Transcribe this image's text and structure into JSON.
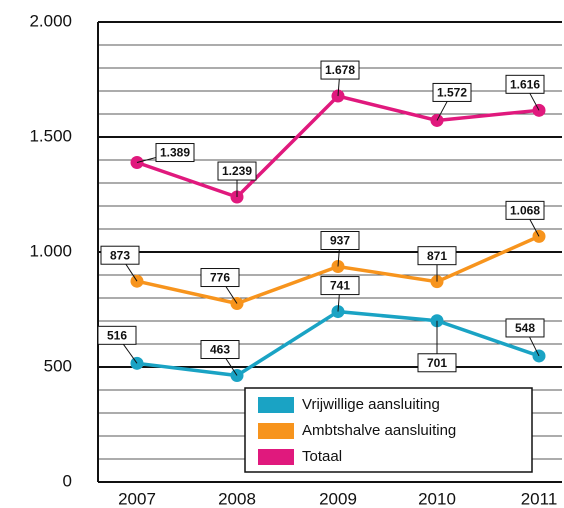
{
  "chart_data": {
    "type": "line",
    "categories": [
      "2007",
      "2008",
      "2009",
      "2010",
      "2011"
    ],
    "series": [
      {
        "name": "Vrijwillige aansluiting",
        "color": "#1aa3c4",
        "values": [
          516,
          463,
          741,
          701,
          548
        ],
        "value_labels": [
          "516",
          "463",
          "741",
          "701",
          "548"
        ]
      },
      {
        "name": "Ambtshalve aansluiting",
        "color": "#f7941d",
        "values": [
          873,
          776,
          937,
          871,
          1068
        ],
        "value_labels": [
          "873",
          "776",
          "937",
          "871",
          "1.068"
        ]
      },
      {
        "name": "Totaal",
        "color": "#e0197d",
        "values": [
          1389,
          1239,
          1678,
          1572,
          1616
        ],
        "value_labels": [
          "1.389",
          "1.239",
          "1.678",
          "1.572",
          "1.616"
        ]
      }
    ],
    "ylim": [
      0,
      2000
    ],
    "yticks": [
      0,
      500,
      {
        "value": 1000,
        "label": "1.000"
      },
      {
        "value": 1500,
        "label": "1.500"
      },
      {
        "value": 2000,
        "label": "2.000"
      }
    ],
    "grid": true
  }
}
